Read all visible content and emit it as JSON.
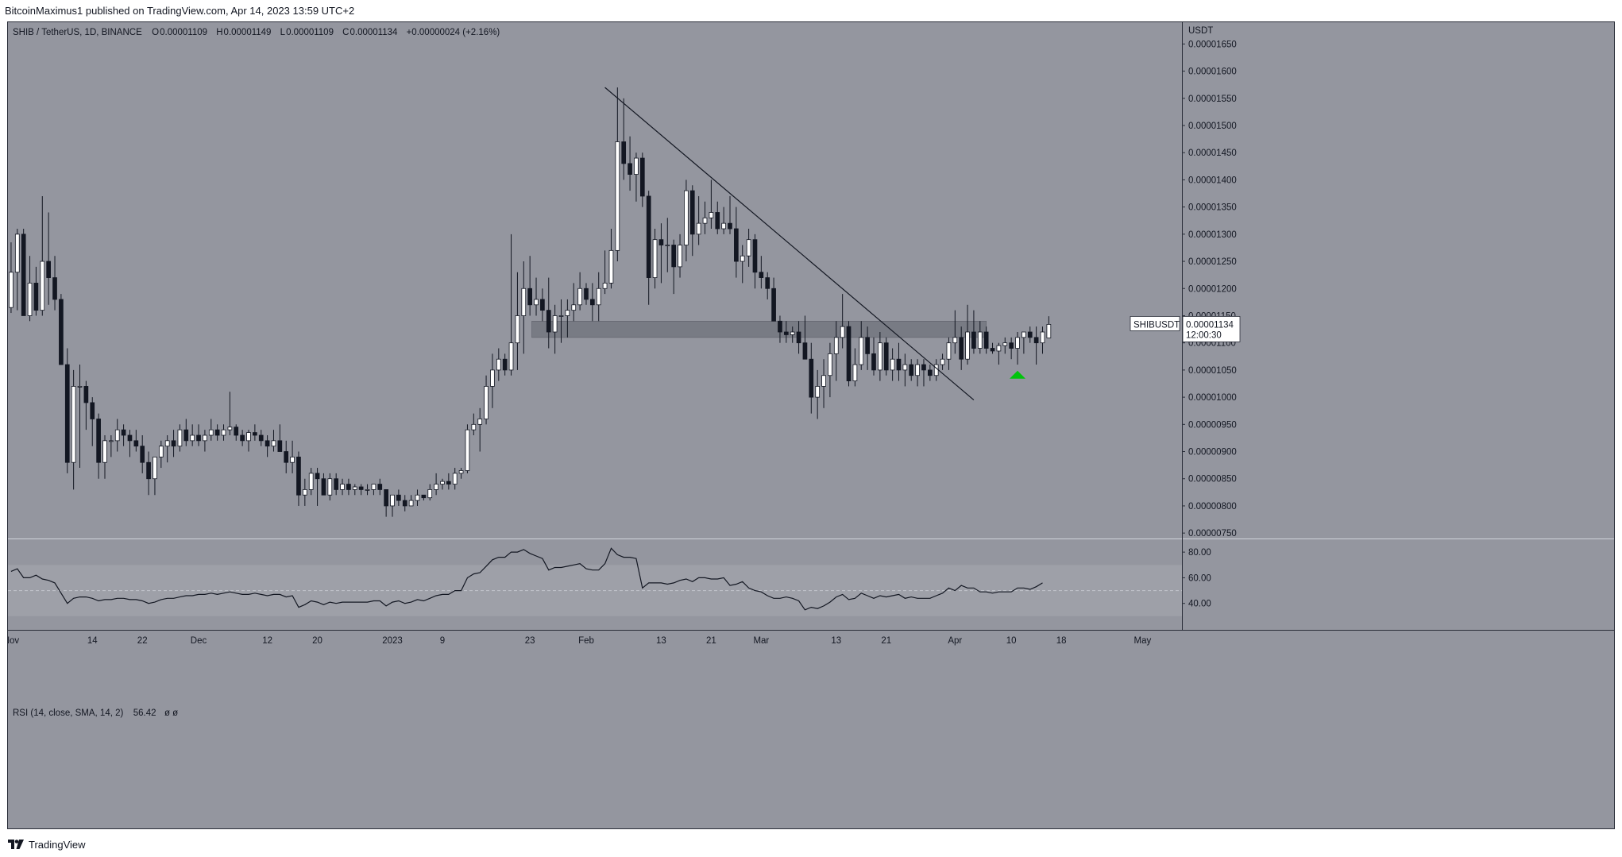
{
  "header": {
    "text": "BitcoinMaximus1 published on TradingView.com, Apr 14, 2023 13:59 UTC+2"
  },
  "legend": {
    "symbol": "SHIB / TetherUS, 1D, BINANCE",
    "open_label": "O",
    "open": "0.00001109",
    "high_label": "H",
    "high": "0.00001149",
    "low_label": "L",
    "low": "0.00001109",
    "close_label": "C",
    "close": "0.00001134",
    "change": "+0.00000024 (+2.16%)"
  },
  "rsi_legend": {
    "label": "RSI (14, close, SMA, 14, 2)",
    "value": "56.42",
    "extra": "ø ø"
  },
  "price_axis_unit": "USDT",
  "price_tag": {
    "symbol": "SHIBUSDT",
    "price": "0.00001134",
    "countdown": "12:00:30"
  },
  "footer": {
    "brand": "TradingView"
  },
  "colors": {
    "background": "#94969f",
    "bull_body": "#ffffff",
    "bear_body": "#131722",
    "wick": "#131722",
    "zone": "#6f727b",
    "trendline": "#131722",
    "arrow": "#00c40a",
    "rsi_line": "#131722",
    "rsi_band": "#9ea0a8"
  },
  "chart_data": {
    "type": "candlestick",
    "title": "SHIB / TetherUS, 1D, BINANCE",
    "ylabel": "USDT",
    "ylim": [
      7.4e-06,
      1.69e-05
    ],
    "y_ticks": [
      "0.00000750",
      "0.00000800",
      "0.00000850",
      "0.00000900",
      "0.00000950",
      "0.00001000",
      "0.00001050",
      "0.00001100",
      "0.00001150",
      "0.00001200",
      "0.00001250",
      "0.00001300",
      "0.00001350",
      "0.00001400",
      "0.00001450",
      "0.00001500",
      "0.00001550",
      "0.00001600",
      "0.00001650"
    ],
    "x_ticks": [
      {
        "label": "Nov",
        "day": 0
      },
      {
        "label": "14",
        "day": 13
      },
      {
        "label": "22",
        "day": 21
      },
      {
        "label": "Dec",
        "day": 30
      },
      {
        "label": "12",
        "day": 41
      },
      {
        "label": "20",
        "day": 49
      },
      {
        "label": "2023",
        "day": 61
      },
      {
        "label": "9",
        "day": 69
      },
      {
        "label": "23",
        "day": 83
      },
      {
        "label": "Feb",
        "day": 92
      },
      {
        "label": "13",
        "day": 104
      },
      {
        "label": "21",
        "day": 112
      },
      {
        "label": "Mar",
        "day": 120
      },
      {
        "label": "13",
        "day": 132
      },
      {
        "label": "21",
        "day": 140
      },
      {
        "label": "Apr",
        "day": 151
      },
      {
        "label": "10",
        "day": 160
      },
      {
        "label": "18",
        "day": 168
      },
      {
        "label": "May",
        "day": 181
      }
    ],
    "x_range_days": [
      -0.5,
      187.3
    ],
    "candles_ohlc": [
      [
        1.165,
        1.285,
        1.155,
        1.23
      ],
      [
        1.23,
        1.31,
        1.16,
        1.3
      ],
      [
        1.3,
        1.31,
        1.15,
        1.15
      ],
      [
        1.15,
        1.26,
        1.14,
        1.21
      ],
      [
        1.21,
        1.24,
        1.15,
        1.16
      ],
      [
        1.16,
        1.37,
        1.15,
        1.25
      ],
      [
        1.25,
        1.34,
        1.17,
        1.22
      ],
      [
        1.22,
        1.26,
        1.16,
        1.18
      ],
      [
        1.18,
        1.19,
        1.06,
        1.06
      ],
      [
        1.06,
        1.09,
        0.86,
        0.88
      ],
      [
        0.88,
        1.05,
        0.83,
        1.02
      ],
      [
        1.02,
        1.06,
        0.87,
        1.02
      ],
      [
        1.02,
        1.03,
        0.94,
        0.99
      ],
      [
        0.99,
        1.0,
        0.91,
        0.96
      ],
      [
        0.96,
        0.97,
        0.85,
        0.88
      ],
      [
        0.88,
        0.93,
        0.85,
        0.92
      ],
      [
        0.92,
        0.93,
        0.89,
        0.92
      ],
      [
        0.92,
        0.96,
        0.9,
        0.94
      ],
      [
        0.94,
        0.95,
        0.91,
        0.93
      ],
      [
        0.93,
        0.94,
        0.89,
        0.92
      ],
      [
        0.92,
        0.94,
        0.9,
        0.91
      ],
      [
        0.91,
        0.93,
        0.86,
        0.88
      ],
      [
        0.88,
        0.9,
        0.82,
        0.85
      ],
      [
        0.85,
        0.89,
        0.82,
        0.89
      ],
      [
        0.89,
        0.92,
        0.87,
        0.91
      ],
      [
        0.91,
        0.93,
        0.88,
        0.92
      ],
      [
        0.92,
        0.94,
        0.89,
        0.91
      ],
      [
        0.91,
        0.95,
        0.9,
        0.94
      ],
      [
        0.94,
        0.96,
        0.91,
        0.92
      ],
      [
        0.92,
        0.95,
        0.91,
        0.93
      ],
      [
        0.93,
        0.95,
        0.91,
        0.92
      ],
      [
        0.92,
        0.94,
        0.9,
        0.93
      ],
      [
        0.93,
        0.96,
        0.92,
        0.94
      ],
      [
        0.94,
        0.95,
        0.92,
        0.93
      ],
      [
        0.93,
        0.95,
        0.92,
        0.94
      ],
      [
        0.94,
        1.01,
        0.93,
        0.945
      ],
      [
        0.945,
        0.95,
        0.92,
        0.93
      ],
      [
        0.93,
        0.94,
        0.91,
        0.92
      ],
      [
        0.92,
        0.94,
        0.9,
        0.935
      ],
      [
        0.935,
        0.95,
        0.92,
        0.93
      ],
      [
        0.93,
        0.94,
        0.91,
        0.92
      ],
      [
        0.92,
        0.93,
        0.89,
        0.91
      ],
      [
        0.91,
        0.94,
        0.9,
        0.92
      ],
      [
        0.92,
        0.95,
        0.9,
        0.9
      ],
      [
        0.9,
        0.92,
        0.86,
        0.88
      ],
      [
        0.88,
        0.92,
        0.86,
        0.89
      ],
      [
        0.89,
        0.9,
        0.8,
        0.82
      ],
      [
        0.82,
        0.85,
        0.8,
        0.83
      ],
      [
        0.83,
        0.87,
        0.82,
        0.86
      ],
      [
        0.86,
        0.87,
        0.8,
        0.85
      ],
      [
        0.85,
        0.86,
        0.82,
        0.82
      ],
      [
        0.82,
        0.86,
        0.81,
        0.85
      ],
      [
        0.85,
        0.86,
        0.82,
        0.83
      ],
      [
        0.83,
        0.85,
        0.82,
        0.84
      ],
      [
        0.84,
        0.85,
        0.82,
        0.83
      ],
      [
        0.83,
        0.84,
        0.82,
        0.835
      ],
      [
        0.835,
        0.84,
        0.82,
        0.83
      ],
      [
        0.83,
        0.84,
        0.82,
        0.83
      ],
      [
        0.83,
        0.84,
        0.82,
        0.84
      ],
      [
        0.84,
        0.85,
        0.82,
        0.83
      ],
      [
        0.83,
        0.83,
        0.78,
        0.8
      ],
      [
        0.8,
        0.82,
        0.78,
        0.82
      ],
      [
        0.82,
        0.83,
        0.8,
        0.81
      ],
      [
        0.81,
        0.82,
        0.79,
        0.8
      ],
      [
        0.8,
        0.82,
        0.8,
        0.81
      ],
      [
        0.81,
        0.83,
        0.8,
        0.82
      ],
      [
        0.82,
        0.82,
        0.81,
        0.815
      ],
      [
        0.815,
        0.84,
        0.81,
        0.83
      ],
      [
        0.83,
        0.86,
        0.82,
        0.84
      ],
      [
        0.84,
        0.85,
        0.83,
        0.845
      ],
      [
        0.845,
        0.86,
        0.83,
        0.84
      ],
      [
        0.84,
        0.87,
        0.83,
        0.86
      ],
      [
        0.86,
        0.87,
        0.85,
        0.865
      ],
      [
        0.865,
        0.95,
        0.86,
        0.94
      ],
      [
        0.94,
        0.97,
        0.93,
        0.95
      ],
      [
        0.95,
        0.98,
        0.9,
        0.96
      ],
      [
        0.96,
        1.04,
        0.95,
        1.02
      ],
      [
        1.02,
        1.08,
        0.98,
        1.05
      ],
      [
        1.05,
        1.09,
        1.03,
        1.07
      ],
      [
        1.07,
        1.08,
        1.04,
        1.05
      ],
      [
        1.05,
        1.3,
        1.04,
        1.1
      ],
      [
        1.1,
        1.23,
        1.05,
        1.15
      ],
      [
        1.15,
        1.25,
        1.08,
        1.2
      ],
      [
        1.2,
        1.26,
        1.15,
        1.17
      ],
      [
        1.17,
        1.22,
        1.15,
        1.18
      ],
      [
        1.18,
        1.2,
        1.14,
        1.16
      ],
      [
        1.16,
        1.22,
        1.09,
        1.12
      ],
      [
        1.12,
        1.17,
        1.08,
        1.15
      ],
      [
        1.15,
        1.18,
        1.1,
        1.15
      ],
      [
        1.15,
        1.18,
        1.11,
        1.16
      ],
      [
        1.16,
        1.21,
        1.14,
        1.17
      ],
      [
        1.17,
        1.23,
        1.16,
        1.2
      ],
      [
        1.2,
        1.21,
        1.17,
        1.18
      ],
      [
        1.18,
        1.21,
        1.14,
        1.17
      ],
      [
        1.17,
        1.23,
        1.14,
        1.2
      ],
      [
        1.2,
        1.27,
        1.19,
        1.21
      ],
      [
        1.21,
        1.31,
        1.2,
        1.27
      ],
      [
        1.27,
        1.57,
        1.25,
        1.47
      ],
      [
        1.47,
        1.55,
        1.4,
        1.43
      ],
      [
        1.43,
        1.48,
        1.38,
        1.41
      ],
      [
        1.41,
        1.45,
        1.36,
        1.44
      ],
      [
        1.44,
        1.45,
        1.35,
        1.37
      ],
      [
        1.37,
        1.38,
        1.17,
        1.22
      ],
      [
        1.22,
        1.31,
        1.2,
        1.29
      ],
      [
        1.29,
        1.32,
        1.21,
        1.28
      ],
      [
        1.28,
        1.33,
        1.23,
        1.28
      ],
      [
        1.28,
        1.29,
        1.19,
        1.24
      ],
      [
        1.24,
        1.3,
        1.22,
        1.28
      ],
      [
        1.28,
        1.4,
        1.25,
        1.38
      ],
      [
        1.38,
        1.39,
        1.26,
        1.3
      ],
      [
        1.3,
        1.37,
        1.28,
        1.32
      ],
      [
        1.32,
        1.36,
        1.3,
        1.33
      ],
      [
        1.33,
        1.4,
        1.31,
        1.34
      ],
      [
        1.34,
        1.36,
        1.3,
        1.31
      ],
      [
        1.31,
        1.35,
        1.3,
        1.32
      ],
      [
        1.32,
        1.37,
        1.3,
        1.31
      ],
      [
        1.31,
        1.35,
        1.22,
        1.25
      ],
      [
        1.25,
        1.28,
        1.21,
        1.26
      ],
      [
        1.26,
        1.31,
        1.24,
        1.29
      ],
      [
        1.29,
        1.3,
        1.2,
        1.23
      ],
      [
        1.23,
        1.26,
        1.2,
        1.22
      ],
      [
        1.22,
        1.23,
        1.18,
        1.2
      ],
      [
        1.2,
        1.22,
        1.14,
        1.14
      ],
      [
        1.14,
        1.15,
        1.1,
        1.12
      ],
      [
        1.12,
        1.14,
        1.1,
        1.115
      ],
      [
        1.115,
        1.13,
        1.1,
        1.12
      ],
      [
        1.12,
        1.14,
        1.08,
        1.1
      ],
      [
        1.1,
        1.15,
        1.07,
        1.07
      ],
      [
        1.07,
        1.1,
        0.97,
        1.0
      ],
      [
        1.0,
        1.05,
        0.96,
        1.02
      ],
      [
        1.02,
        1.07,
        0.98,
        1.04
      ],
      [
        1.04,
        1.1,
        1.0,
        1.08
      ],
      [
        1.08,
        1.14,
        1.03,
        1.11
      ],
      [
        1.11,
        1.19,
        1.09,
        1.13
      ],
      [
        1.13,
        1.14,
        1.02,
        1.03
      ],
      [
        1.03,
        1.09,
        1.02,
        1.06
      ],
      [
        1.06,
        1.14,
        1.05,
        1.11
      ],
      [
        1.11,
        1.13,
        1.05,
        1.08
      ],
      [
        1.08,
        1.11,
        1.04,
        1.05
      ],
      [
        1.05,
        1.12,
        1.03,
        1.1
      ],
      [
        1.1,
        1.11,
        1.04,
        1.05
      ],
      [
        1.05,
        1.09,
        1.03,
        1.07
      ],
      [
        1.07,
        1.1,
        1.03,
        1.05
      ],
      [
        1.05,
        1.08,
        1.02,
        1.06
      ],
      [
        1.06,
        1.07,
        1.03,
        1.04
      ],
      [
        1.04,
        1.07,
        1.02,
        1.06
      ],
      [
        1.06,
        1.07,
        1.02,
        1.05
      ],
      [
        1.05,
        1.06,
        1.03,
        1.04
      ],
      [
        1.04,
        1.07,
        1.03,
        1.06
      ],
      [
        1.06,
        1.08,
        1.05,
        1.07
      ],
      [
        1.07,
        1.11,
        1.05,
        1.1
      ],
      [
        1.1,
        1.16,
        1.08,
        1.11
      ],
      [
        1.11,
        1.13,
        1.05,
        1.07
      ],
      [
        1.07,
        1.17,
        1.06,
        1.12
      ],
      [
        1.12,
        1.16,
        1.08,
        1.09
      ],
      [
        1.09,
        1.14,
        1.08,
        1.12
      ],
      [
        1.12,
        1.13,
        1.08,
        1.09
      ],
      [
        1.09,
        1.1,
        1.08,
        1.085
      ],
      [
        1.085,
        1.1,
        1.06,
        1.095
      ],
      [
        1.095,
        1.11,
        1.08,
        1.1
      ],
      [
        1.1,
        1.11,
        1.07,
        1.09
      ],
      [
        1.09,
        1.12,
        1.06,
        1.11
      ],
      [
        1.11,
        1.12,
        1.08,
        1.12
      ],
      [
        1.12,
        1.13,
        1.1,
        1.11
      ],
      [
        1.11,
        1.13,
        1.06,
        1.1
      ],
      [
        1.1,
        1.13,
        1.08,
        1.12
      ],
      [
        1.109,
        1.149,
        1.109,
        1.134
      ]
    ],
    "price_scale": 1e-05,
    "resistance_zone": [
      1.11e-05,
      1.14e-05
    ],
    "trendline": [
      [
        95,
        1.57e-05
      ],
      [
        154,
        9.95e-06
      ]
    ],
    "arrow": {
      "day": 161,
      "price": 1.04e-05
    },
    "rsi": {
      "ylim": [
        20,
        90
      ],
      "levels": [
        30,
        50,
        70
      ],
      "ticks": [
        "80.00",
        "60.00",
        "40.00"
      ],
      "values": [
        65,
        67,
        60,
        60,
        62,
        59,
        58,
        56,
        48,
        40,
        44,
        45,
        45,
        44,
        42,
        43,
        43,
        44,
        44,
        43,
        43,
        42,
        40,
        41,
        43,
        44,
        44,
        45,
        46,
        46,
        47,
        47,
        48,
        47,
        48,
        49,
        48,
        47,
        47,
        48,
        47,
        46,
        47,
        47,
        45,
        46,
        37,
        39,
        42,
        41,
        39,
        41,
        40,
        41,
        41,
        41,
        41,
        41,
        42,
        42,
        38,
        41,
        42,
        40,
        41,
        43,
        42,
        44,
        46,
        47,
        47,
        50,
        50,
        60,
        63,
        64,
        69,
        74,
        76,
        76,
        80,
        80,
        82,
        79,
        77,
        75,
        66,
        68,
        68,
        69,
        70,
        71,
        67,
        66,
        66,
        71,
        83,
        78,
        76,
        76,
        75,
        52,
        56,
        56,
        56,
        55,
        56,
        58,
        59,
        57,
        60,
        60,
        59,
        59,
        60,
        54,
        55,
        57,
        52,
        50,
        49,
        46,
        44,
        44,
        45,
        44,
        42,
        35,
        37,
        36,
        38,
        41,
        45,
        47,
        43,
        44,
        48,
        46,
        44,
        46,
        45,
        46,
        47,
        44,
        45,
        44,
        44,
        44,
        46,
        48,
        52,
        50,
        54,
        52,
        52,
        49,
        49,
        48,
        49,
        49,
        49,
        52,
        52,
        51,
        53,
        56
      ]
    }
  }
}
